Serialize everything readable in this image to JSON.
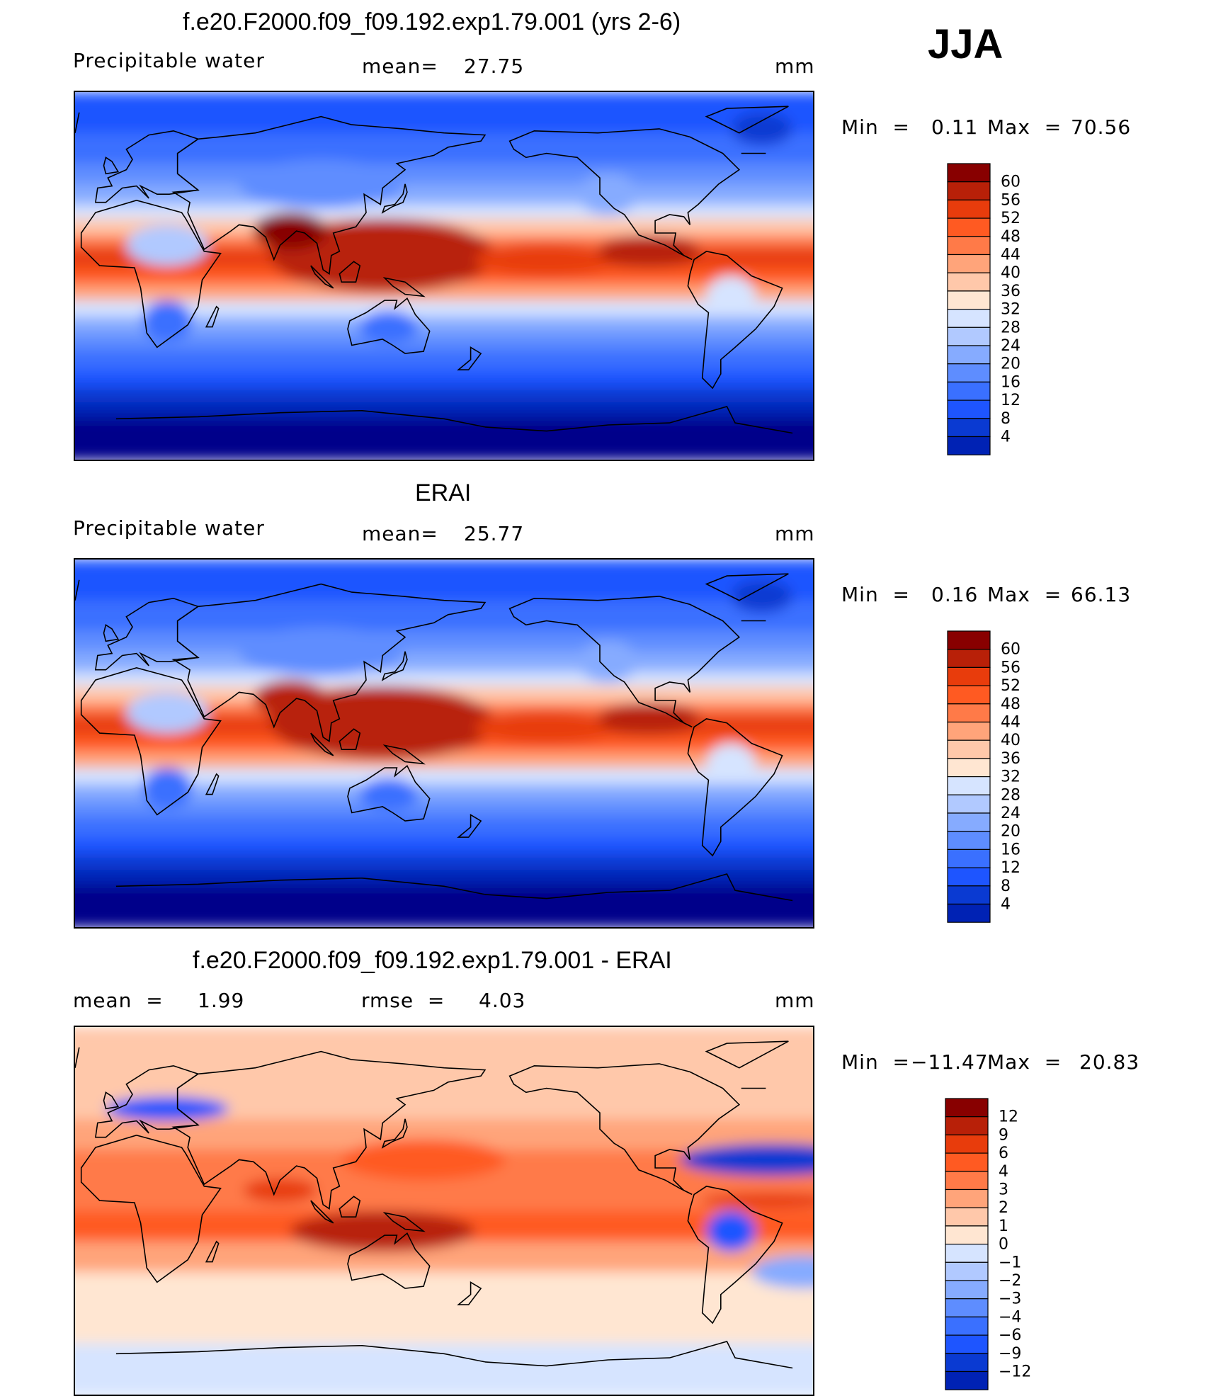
{
  "season": "JJA",
  "colors": {
    "seq": [
      "#00008a",
      "#0022b4",
      "#0a3ad2",
      "#1e55ff",
      "#3a70ff",
      "#5e8dff",
      "#86abff",
      "#b1c9ff",
      "#d6e4ff",
      "#ffe6d2",
      "#ffc8aa",
      "#ffa47a",
      "#ff7a48",
      "#ff5a22",
      "#e83c0c",
      "#b82008",
      "#880000"
    ],
    "diff": [
      "#00008a",
      "#0022b4",
      "#0a3ad2",
      "#1e55ff",
      "#3a70ff",
      "#5e8dff",
      "#86abff",
      "#b1c9ff",
      "#d6e4ff",
      "#ffe6d2",
      "#ffc8aa",
      "#ffa47a",
      "#ff7a48",
      "#ff5a22",
      "#e83c0c",
      "#b82008",
      "#880000"
    ],
    "coast": "#000000"
  },
  "chart_data": [
    {
      "type": "heatmap",
      "title": "f.e20.F2000.f09_f09.192.exp1.79.001 (yrs 2-6)",
      "variable": "Precipitable water",
      "mean_label": "mean=",
      "mean_value": "27.75",
      "units": "mm",
      "min_label": "Min  =",
      "min_value": "0.11",
      "max_label": "Max  =",
      "max_value": "70.56",
      "levels": [
        "60",
        "56",
        "52",
        "48",
        "44",
        "40",
        "36",
        "32",
        "28",
        "24",
        "20",
        "16",
        "12",
        "8",
        "4"
      ]
    },
    {
      "type": "heatmap",
      "title": "ERAI",
      "variable": "Precipitable water",
      "mean_label": "mean=",
      "mean_value": "25.77",
      "units": "mm",
      "min_label": "Min  =",
      "min_value": "0.16",
      "max_label": "Max  =",
      "max_value": "66.13",
      "levels": [
        "60",
        "56",
        "52",
        "48",
        "44",
        "40",
        "36",
        "32",
        "28",
        "24",
        "20",
        "16",
        "12",
        "8",
        "4"
      ]
    },
    {
      "type": "heatmap",
      "title": "f.e20.F2000.f09_f09.192.exp1.79.001 - ERAI",
      "mean_label": "mean  =",
      "mean_value": "1.99",
      "rmse_label": "rmse  =",
      "rmse_value": "4.03",
      "units": "mm",
      "min_label": "Min  =",
      "min_value": "−11.47",
      "max_label": "Max  =",
      "max_value": "20.83",
      "levels": [
        "12",
        "9",
        "6",
        "4",
        "3",
        "2",
        "1",
        "0",
        "−1",
        "−2",
        "−3",
        "−4",
        "−6",
        "−9",
        "−12"
      ]
    }
  ]
}
